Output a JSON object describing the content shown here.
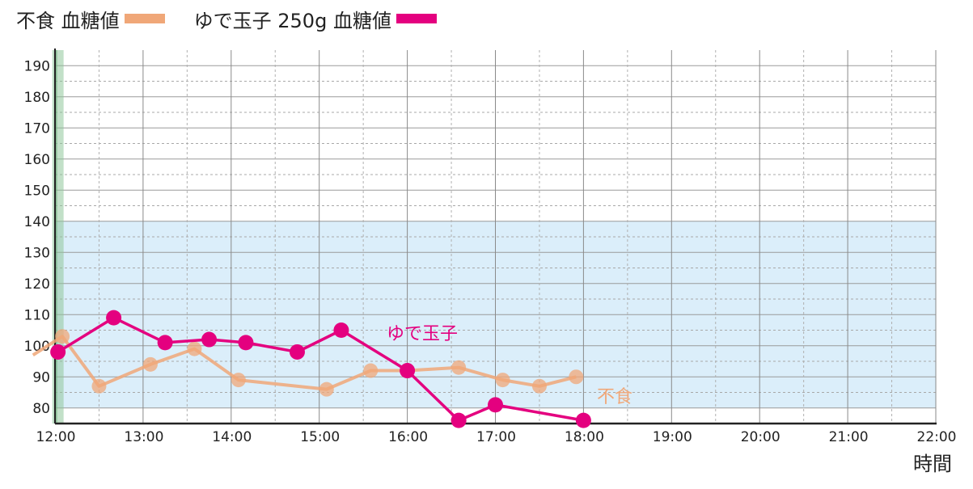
{
  "chart_data": {
    "type": "line",
    "legend": [
      {
        "label": "不食 血糖値",
        "color": "#f0a778"
      },
      {
        "label": "ゆで玉子 250g 血糖値",
        "color": "#e4007f"
      }
    ],
    "xlabel": "時間",
    "x_ticks": [
      "12:00",
      "13:00",
      "14:00",
      "15:00",
      "16:00",
      "17:00",
      "18:00",
      "19:00",
      "20:00",
      "21:00",
      "22:00"
    ],
    "xlim": [
      "12:00",
      "22:00"
    ],
    "ylim": [
      75,
      195
    ],
    "y_ticks": [
      80,
      90,
      100,
      110,
      120,
      130,
      140,
      150,
      160,
      170,
      180,
      190
    ],
    "target_band": {
      "from": 80,
      "to": 140,
      "color": "#dbeefa"
    },
    "meal_marker": {
      "x": "12:02",
      "color": "#8fc79a"
    },
    "series": [
      {
        "name": "不食",
        "color": "#f0a778",
        "points": [
          {
            "x": "11:45",
            "y": 97
          },
          {
            "x": "12:05",
            "y": 103
          },
          {
            "x": "12:30",
            "y": 87
          },
          {
            "x": "13:05",
            "y": 94
          },
          {
            "x": "13:35",
            "y": 99
          },
          {
            "x": "14:05",
            "y": 89
          },
          {
            "x": "15:05",
            "y": 86
          },
          {
            "x": "15:35",
            "y": 92
          },
          {
            "x": "16:00",
            "y": 92
          },
          {
            "x": "16:35",
            "y": 93
          },
          {
            "x": "17:05",
            "y": 89
          },
          {
            "x": "17:30",
            "y": 87
          },
          {
            "x": "17:55",
            "y": 90
          }
        ]
      },
      {
        "name": "ゆで玉子",
        "color": "#e4007f",
        "points": [
          {
            "x": "12:02",
            "y": 98
          },
          {
            "x": "12:40",
            "y": 109
          },
          {
            "x": "13:15",
            "y": 101
          },
          {
            "x": "13:45",
            "y": 102
          },
          {
            "x": "14:10",
            "y": 101
          },
          {
            "x": "14:45",
            "y": 98
          },
          {
            "x": "15:15",
            "y": 105
          },
          {
            "x": "16:00",
            "y": 92
          },
          {
            "x": "16:35",
            "y": 76
          },
          {
            "x": "17:00",
            "y": 81
          },
          {
            "x": "18:00",
            "y": 76
          }
        ]
      }
    ]
  }
}
